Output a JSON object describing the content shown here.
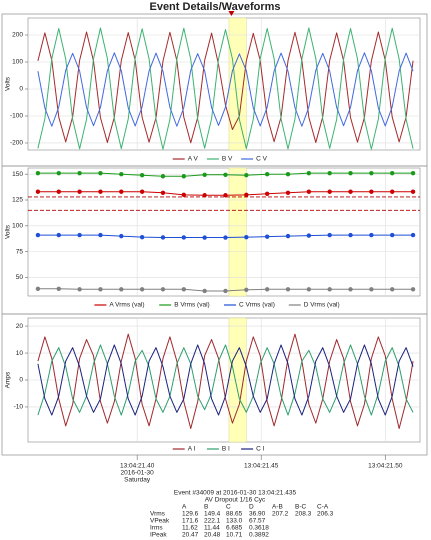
{
  "title": "Event Details/Waveforms",
  "time_axis": {
    "xlim": [
      21.356,
      21.514
    ],
    "xticks": [
      {
        "value": 21.4,
        "label": "13:04:21.40"
      },
      {
        "value": 21.45,
        "label": "13:04:21.45"
      },
      {
        "value": 21.5,
        "label": "13:04:21.50"
      }
    ],
    "first_tick_sublines": [
      "2016-01-30",
      "Saturday"
    ]
  },
  "cursor_time": 21.438,
  "highlight_range": [
    21.437,
    21.444
  ],
  "chart_data": [
    {
      "type": "line",
      "ylabel": "Volts",
      "ylim": [
        -226,
        263
      ],
      "yticks": [
        -200,
        -100,
        0,
        100,
        200
      ],
      "grid": true,
      "x": [
        21.36,
        21.3628,
        21.3656,
        21.3684,
        21.3712,
        21.374,
        21.3768,
        21.3796,
        21.3824,
        21.3852,
        21.388,
        21.3908,
        21.3936,
        21.3964,
        21.3992,
        21.402,
        21.4048,
        21.4076,
        21.4104,
        21.4132,
        21.416,
        21.4188,
        21.4216,
        21.4244,
        21.4272,
        21.43,
        21.4328,
        21.4356,
        21.4384,
        21.4412,
        21.444,
        21.4468,
        21.4496,
        21.4524,
        21.4552,
        21.458,
        21.4608,
        21.4636,
        21.4664,
        21.4692,
        21.472,
        21.4748,
        21.4776,
        21.4804,
        21.4832,
        21.486,
        21.4888,
        21.4916,
        21.4944,
        21.4972,
        21.5,
        21.5028,
        21.5056,
        21.5084,
        21.5112
      ],
      "series": [
        {
          "name": "A V",
          "color": "#a52a2a",
          "values": [
            104,
            208,
            106,
            -104,
            -196,
            -103,
            106,
            211,
            104,
            -106,
            -198,
            -104,
            105,
            209,
            107,
            -105,
            -197,
            -106,
            103,
            210,
            105,
            -104,
            -199,
            -105,
            106,
            207,
            90,
            -60,
            -150,
            -100,
            104,
            206,
            105,
            -103,
            -195,
            -104,
            105,
            210,
            104,
            -105,
            -198,
            -103,
            106,
            208,
            105,
            -106,
            -197,
            -105,
            104,
            211,
            106,
            -104,
            -196,
            -104,
            105
          ]
        },
        {
          "name": "B V",
          "color": "#3cb371",
          "values": [
            -220,
            -110,
            113,
            224,
            111,
            -113,
            -222,
            -112,
            112,
            226,
            113,
            -111,
            -221,
            -111,
            114,
            223,
            112,
            -112,
            -223,
            -113,
            111,
            225,
            110,
            -112,
            -219,
            -110,
            112,
            220,
            111,
            -113,
            -221,
            -112,
            113,
            224,
            112,
            -111,
            -222,
            -111,
            112,
            226,
            113,
            -112,
            -220,
            -113,
            111,
            224,
            112,
            -113,
            -223,
            -112,
            113,
            225,
            111,
            -112,
            -221
          ]
        },
        {
          "name": "C V",
          "color": "#4169e1",
          "values": [
            66,
            -70,
            -138,
            -67,
            69,
            132,
            67,
            -69,
            -136,
            -68,
            68,
            134,
            68,
            -70,
            -137,
            -66,
            67,
            133,
            66,
            -68,
            -138,
            -69,
            69,
            131,
            67,
            -69,
            -135,
            -67,
            68,
            130,
            68,
            -70,
            -137,
            -68,
            67,
            133,
            66,
            -69,
            -138,
            -67,
            69,
            132,
            67,
            -68,
            -136,
            -68,
            68,
            134,
            68,
            -70,
            -137,
            -66,
            67,
            133,
            66
          ]
        }
      ]
    },
    {
      "type": "line",
      "ylabel": "Volts",
      "ylim": [
        32,
        156
      ],
      "yticks": [
        50,
        75,
        100,
        125,
        150
      ],
      "grid": true,
      "markers": true,
      "reference_lines": [
        128,
        115
      ],
      "reference_color": "#b00000",
      "x": [
        21.36,
        21.3684,
        21.3768,
        21.3852,
        21.3936,
        21.402,
        21.4104,
        21.4188,
        21.4272,
        21.4356,
        21.444,
        21.4524,
        21.4608,
        21.4692,
        21.4776,
        21.486,
        21.4944,
        21.5028,
        21.5112
      ],
      "series": [
        {
          "name": "A Vrms (val)",
          "color": "#cc0000",
          "values": [
            133,
            133,
            133,
            133,
            133,
            133,
            132,
            130,
            129.6,
            129.6,
            130,
            131,
            132,
            133,
            133,
            133,
            133,
            133,
            133
          ]
        },
        {
          "name": "B Vrms (val)",
          "color": "#1a9a1a",
          "values": [
            151,
            151,
            151,
            151,
            150,
            149,
            148,
            148,
            149.4,
            149.4,
            149,
            150,
            150,
            151,
            151,
            151,
            151,
            151,
            151
          ]
        },
        {
          "name": "C Vrms (val)",
          "color": "#1e4fd6",
          "values": [
            91,
            91,
            91,
            91,
            90,
            89,
            88.7,
            88.7,
            88.65,
            88.65,
            89,
            89.5,
            90,
            90.5,
            91,
            91,
            91,
            91,
            91
          ]
        },
        {
          "name": "D Vrms (val)",
          "color": "#808080",
          "values": [
            39,
            39,
            38.5,
            38.5,
            38.5,
            38.5,
            38.5,
            38.5,
            36.9,
            36.9,
            38,
            38.5,
            38.5,
            38.5,
            38.5,
            38.5,
            38.5,
            38.5,
            38.5
          ]
        }
      ]
    },
    {
      "type": "line",
      "ylabel": "Amps",
      "ylim": [
        -23,
        23
      ],
      "yticks": [
        -10,
        0,
        10,
        20
      ],
      "grid": true,
      "x": [
        21.36,
        21.3628,
        21.3656,
        21.3684,
        21.3712,
        21.374,
        21.3768,
        21.3796,
        21.3824,
        21.3852,
        21.388,
        21.3908,
        21.3936,
        21.3964,
        21.3992,
        21.402,
        21.4048,
        21.4076,
        21.4104,
        21.4132,
        21.416,
        21.4188,
        21.4216,
        21.4244,
        21.4272,
        21.43,
        21.4328,
        21.4356,
        21.4384,
        21.4412,
        21.444,
        21.4468,
        21.4496,
        21.4524,
        21.4552,
        21.458,
        21.4608,
        21.4636,
        21.4664,
        21.4692,
        21.472,
        21.4748,
        21.4776,
        21.4804,
        21.4832,
        21.486,
        21.4888,
        21.4916,
        21.4944,
        21.4972,
        21.5,
        21.5028,
        21.5056,
        21.5084,
        21.5112
      ],
      "series": [
        {
          "name": "A I",
          "color": "#a0282d",
          "values": [
            7,
            16,
            8,
            -7,
            -17,
            -9,
            8,
            15,
            9,
            -8,
            -16,
            -8,
            7,
            17,
            8,
            -9,
            -17,
            -7,
            8,
            16,
            7,
            -8,
            -18,
            -8,
            9,
            15,
            8,
            -7,
            -16,
            -9,
            7,
            16,
            9,
            -8,
            -17,
            -8,
            8,
            17,
            7,
            -9,
            -16,
            -7,
            7,
            15,
            8,
            -8,
            -17,
            -9,
            8,
            16,
            9,
            -7,
            -18,
            -8,
            7
          ]
        },
        {
          "name": "B I",
          "color": "#2e9e6e",
          "values": [
            -13,
            -5,
            7,
            12,
            5,
            -7,
            -12,
            -6,
            6,
            13,
            6,
            -6,
            -13,
            -5,
            7,
            11,
            5,
            -7,
            -12,
            -6,
            6,
            12,
            6,
            -6,
            -11,
            -5,
            7,
            13,
            5,
            -7,
            -12,
            -6,
            6,
            12,
            6,
            -6,
            -13,
            -5,
            7,
            11,
            5,
            -7,
            -12,
            -6,
            6,
            13,
            6,
            -6,
            -13,
            -5,
            7,
            12,
            5,
            -7,
            -12
          ]
        },
        {
          "name": "C I",
          "color": "#1a237e",
          "values": [
            6,
            -7,
            -13,
            -6,
            7,
            12,
            5,
            -6,
            -12,
            -7,
            6,
            13,
            6,
            -7,
            -13,
            -6,
            7,
            12,
            5,
            -6,
            -12,
            -7,
            6,
            13,
            6,
            -7,
            -13,
            -6,
            7,
            12,
            5,
            -6,
            -12,
            -7,
            6,
            13,
            6,
            -7,
            -13,
            -6,
            7,
            12,
            5,
            -6,
            -12,
            -7,
            6,
            13,
            6,
            -7,
            -13,
            -6,
            7,
            12,
            5
          ]
        }
      ]
    }
  ],
  "event": {
    "title": "Event #34009 at 2016-01-30 13:04:21.435",
    "subtitle": "AV Dropout 1/16 Cyc",
    "table": {
      "columns": [
        "A",
        "B",
        "C",
        "D",
        "A-B",
        "B-C",
        "C-A"
      ],
      "rows": [
        {
          "label": "Vrms",
          "cells": [
            "129.6",
            "149.4",
            "88.65",
            "36.90",
            "207.2",
            "208.3",
            "206.3"
          ]
        },
        {
          "label": "VPeak",
          "cells": [
            "171.6",
            "222.1",
            "133.0",
            "67.57"
          ]
        },
        {
          "label": "Irms",
          "cells": [
            "11.62",
            "11.44",
            "6.685",
            "0.3618"
          ]
        },
        {
          "label": "IPeak",
          "cells": [
            "20.47",
            "20.48",
            "10.71",
            "0.3892"
          ]
        }
      ]
    }
  }
}
